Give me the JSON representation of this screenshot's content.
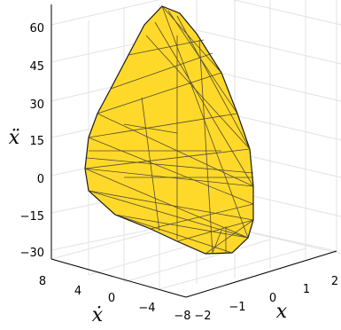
{
  "chart_data": {
    "type": "3d-polytope",
    "fill_color": "#FFD92A",
    "edge_color": "#1a1a1a",
    "x_axis": {
      "label": "x",
      "ticks": [
        "−2",
        "−1",
        "0",
        "1",
        "2"
      ]
    },
    "y_axis": {
      "label": "ẋ",
      "ticks": [
        "−8",
        "−4",
        "0",
        "4",
        "8"
      ]
    },
    "z_axis": {
      "label": "ẍ",
      "ticks": [
        "−30",
        "−15",
        "0",
        "15",
        "30",
        "45",
        "60"
      ]
    },
    "grid": true
  }
}
